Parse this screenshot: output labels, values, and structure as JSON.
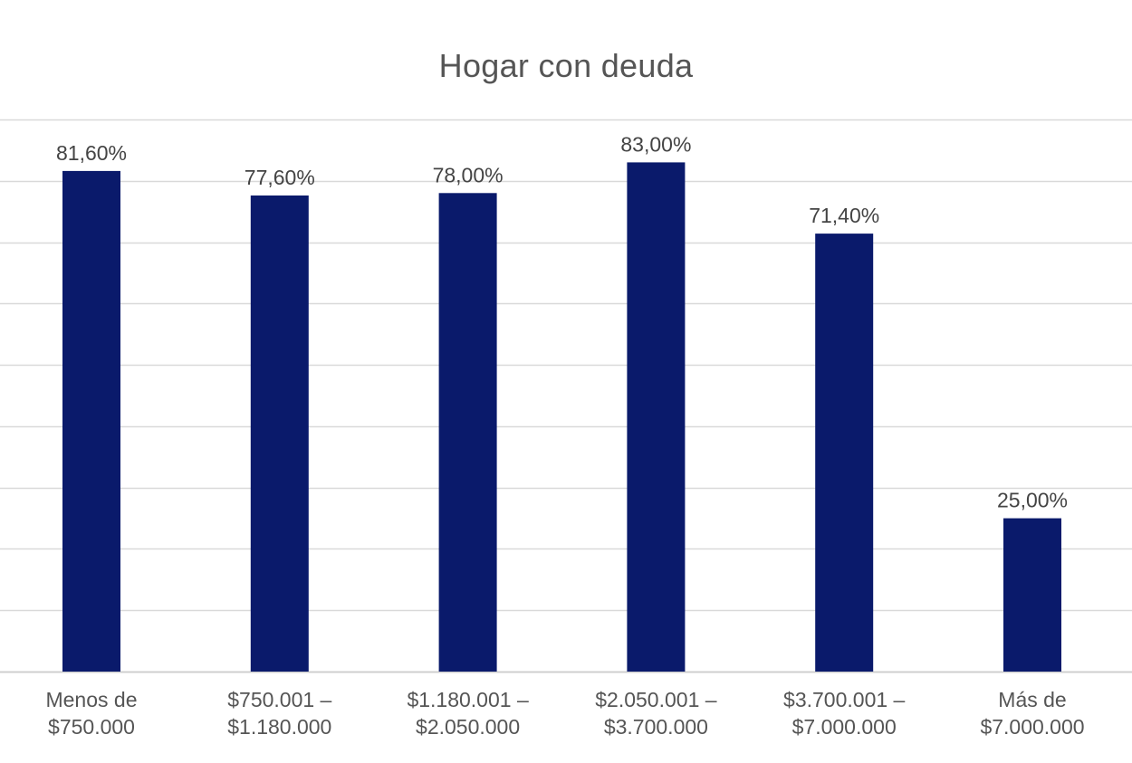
{
  "chart_data": {
    "type": "bar",
    "title": "Hogar con deuda",
    "categories": [
      [
        "Menos de",
        "$750.000"
      ],
      [
        "$750.001 –",
        "$1.180.000"
      ],
      [
        "$1.180.001 –",
        "$2.050.000"
      ],
      [
        "$2.050.001 –",
        "$3.700.000"
      ],
      [
        "$3.700.001 –",
        "$7.000.000"
      ],
      [
        "Más de",
        "$7.000.000"
      ]
    ],
    "values": [
      81.6,
      77.6,
      78.0,
      83.0,
      71.4,
      25.0
    ],
    "data_labels": [
      "81,60%",
      "77,60%",
      "78,00%",
      "83,00%",
      "71,40%",
      "25,00%"
    ],
    "xlabel": "",
    "ylabel": "",
    "ylim": [
      0,
      90
    ],
    "grid": true,
    "bar_color": "#0a1a6b",
    "grid_color": "#d9d9d9"
  }
}
